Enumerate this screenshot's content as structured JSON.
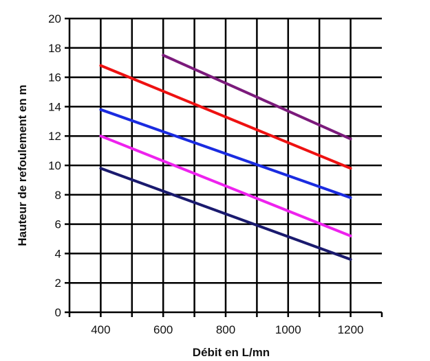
{
  "chart_data": {
    "type": "line",
    "title": "",
    "xlabel": "Débit en L/mn",
    "ylabel": "Hauteur de refoulement en m",
    "xlim": [
      300,
      1300
    ],
    "ylim": [
      0,
      20
    ],
    "x_ticks": [
      400,
      600,
      800,
      1000,
      1200
    ],
    "y_ticks": [
      0,
      2,
      4,
      6,
      8,
      10,
      12,
      14,
      16,
      18,
      20
    ],
    "grid": true,
    "legend": "none",
    "series": [
      {
        "color": "#7b1a7b",
        "x": [
          600,
          1200
        ],
        "y": [
          17.5,
          11.8
        ]
      },
      {
        "color": "#ee1111",
        "x": [
          400,
          1200
        ],
        "y": [
          16.8,
          9.8
        ]
      },
      {
        "color": "#1a2be0",
        "x": [
          400,
          1200
        ],
        "y": [
          13.8,
          7.8
        ]
      },
      {
        "color": "#ee22ee",
        "x": [
          400,
          1200
        ],
        "y": [
          12.0,
          5.2
        ]
      },
      {
        "color": "#1a1a6e",
        "x": [
          400,
          1200
        ],
        "y": [
          9.8,
          3.6
        ]
      }
    ]
  }
}
